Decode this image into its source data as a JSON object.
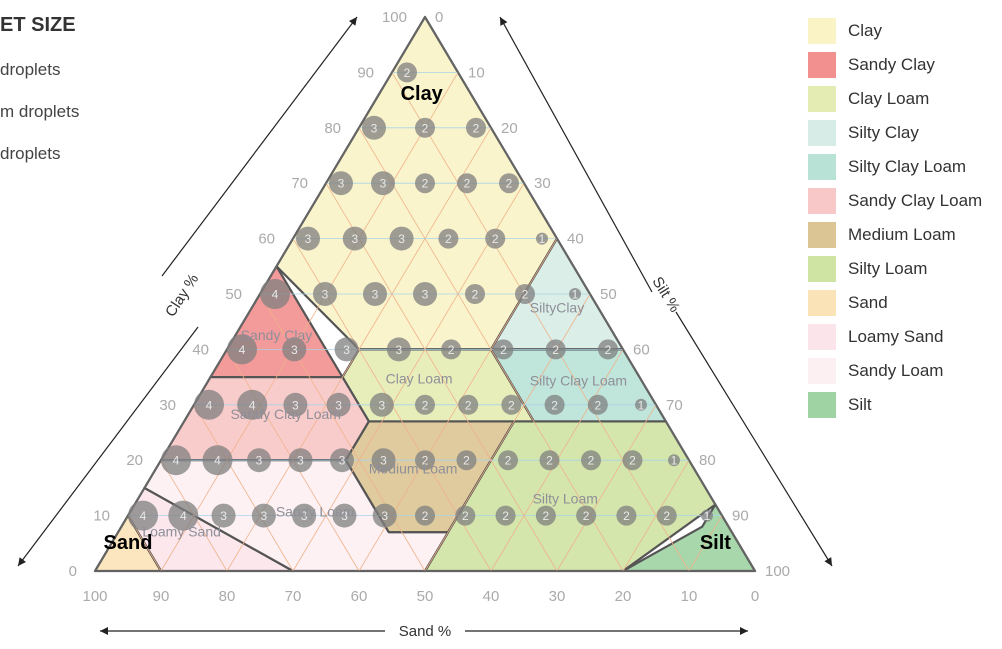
{
  "droplet_size": {
    "title": "ET SIZE",
    "items": [
      "droplets",
      "m droplets",
      "droplets"
    ]
  },
  "chart_data": {
    "type": "ternary",
    "axes": {
      "clay": {
        "label": "Clay %",
        "ticks": [
          0,
          10,
          20,
          30,
          40,
          50,
          60,
          70,
          80,
          90,
          100
        ]
      },
      "silt": {
        "label": "Silt %",
        "ticks": [
          0,
          10,
          20,
          30,
          40,
          50,
          60,
          70,
          80,
          90,
          100
        ]
      },
      "sand": {
        "label": "Sand %",
        "ticks": [
          100,
          90,
          80,
          70,
          60,
          50,
          40,
          30,
          20,
          10,
          0
        ]
      }
    },
    "corner_labels": {
      "top": "Clay",
      "left": "Sand",
      "right": "Silt"
    },
    "regions": [
      {
        "name": "Clay",
        "color": "#f9f3c6",
        "label_on_chart": "Clay",
        "vertices": [
          [
            100,
            0,
            0
          ],
          [
            55,
            0,
            45
          ],
          [
            40,
            20,
            40
          ],
          [
            40,
            40,
            20
          ],
          [
            60,
            40,
            0
          ]
        ]
      },
      {
        "name": "Sandy Clay",
        "color": "#f28f8f",
        "label_on_chart": "Sandy Clay",
        "vertices": [
          [
            55,
            0,
            45
          ],
          [
            35,
            0,
            65
          ],
          [
            35,
            20,
            45
          ]
        ]
      },
      {
        "name": "Clay Loam",
        "color": "#e5ecb3",
        "label_on_chart": "Clay Loam",
        "vertices": [
          [
            40,
            20,
            40
          ],
          [
            35,
            20,
            45
          ],
          [
            27,
            28,
            45
          ],
          [
            27,
            53,
            20
          ],
          [
            40,
            40,
            20
          ]
        ]
      },
      {
        "name": "Silty Clay",
        "color": "#d7ece6",
        "label_on_chart": "SiltyClay",
        "vertices": [
          [
            60,
            40,
            0
          ],
          [
            40,
            60,
            0
          ],
          [
            40,
            40,
            20
          ]
        ]
      },
      {
        "name": "Silty Clay Loam",
        "color": "#b9e2d6",
        "label_on_chart": "Silty Clay Loam",
        "vertices": [
          [
            40,
            40,
            20
          ],
          [
            40,
            60,
            0
          ],
          [
            27,
            73,
            0
          ],
          [
            27,
            53,
            20
          ]
        ]
      },
      {
        "name": "Sandy Clay Loam",
        "color": "#f8c7c7",
        "label_on_chart": "Sandy Clay Loam",
        "vertices": [
          [
            35,
            0,
            65
          ],
          [
            20,
            0,
            80
          ],
          [
            20,
            28,
            52
          ],
          [
            27,
            28,
            45
          ],
          [
            35,
            20,
            45
          ]
        ]
      },
      {
        "name": "Medium Loam",
        "color": "#dcc594",
        "label_on_chart": "Medium Loam",
        "vertices": [
          [
            27,
            28,
            45
          ],
          [
            20,
            28,
            52
          ],
          [
            7,
            41,
            52
          ],
          [
            7,
            50,
            43
          ],
          [
            27,
            50,
            23
          ]
        ]
      },
      {
        "name": "Silty Loam",
        "color": "#cfe3a3",
        "label_on_chart": "Silty Loam",
        "vertices": [
          [
            27,
            50,
            23
          ],
          [
            7,
            50,
            43
          ],
          [
            0,
            50,
            50
          ],
          [
            0,
            80,
            20
          ],
          [
            12,
            88,
            0
          ],
          [
            27,
            73,
            0
          ]
        ]
      },
      {
        "name": "Sand",
        "color": "#fbe3b8",
        "label_on_chart": "Sand",
        "vertices": [
          [
            0,
            0,
            100
          ],
          [
            10,
            0,
            90
          ],
          [
            0,
            10,
            90
          ]
        ]
      },
      {
        "name": "Loamy Sand",
        "color": "#fbe4ea",
        "label_on_chart": "Loamy Sand",
        "vertices": [
          [
            10,
            0,
            90
          ],
          [
            15,
            0,
            85
          ],
          [
            0,
            30,
            70
          ],
          [
            0,
            10,
            90
          ]
        ]
      },
      {
        "name": "Sandy Loam",
        "color": "#fdf0f3",
        "label_on_chart": "Sandy Loam",
        "vertices": [
          [
            15,
            0,
            85
          ],
          [
            20,
            0,
            80
          ],
          [
            20,
            28,
            52
          ],
          [
            7,
            41,
            52
          ],
          [
            7,
            50,
            43
          ],
          [
            0,
            50,
            50
          ],
          [
            0,
            30,
            70
          ]
        ]
      },
      {
        "name": "Silt",
        "color": "#9fd3a3",
        "label_on_chart": "Silt",
        "vertices": [
          [
            0,
            80,
            20
          ],
          [
            0,
            100,
            0
          ],
          [
            12,
            88,
            0
          ],
          [
            8,
            88,
            4
          ]
        ]
      }
    ],
    "droplet_grid": {
      "description_rows_by_clay": [
        {
          "clay": 90,
          "values": [
            2
          ]
        },
        {
          "clay": 80,
          "values": [
            3,
            2,
            2
          ]
        },
        {
          "clay": 70,
          "values": [
            3,
            3,
            2,
            2,
            2
          ]
        },
        {
          "clay": 60,
          "values": [
            3,
            3,
            3,
            2,
            2,
            1
          ]
        },
        {
          "clay": 50,
          "values": [
            4,
            3,
            3,
            3,
            2,
            2,
            1
          ]
        },
        {
          "clay": 40,
          "values": [
            4,
            3,
            3,
            3,
            2,
            2,
            2,
            2
          ]
        },
        {
          "clay": 30,
          "values": [
            4,
            4,
            3,
            3,
            3,
            2,
            2,
            2,
            2,
            2,
            1
          ]
        },
        {
          "clay": 20,
          "values": [
            4,
            4,
            3,
            3,
            3,
            3,
            2,
            2,
            2,
            2,
            2,
            2,
            1
          ]
        },
        {
          "clay": 10,
          "values": [
            4,
            4,
            3,
            3,
            3,
            3,
            3,
            2,
            2,
            2,
            2,
            2,
            2,
            2,
            1
          ]
        }
      ]
    }
  },
  "legend": [
    {
      "label": "Clay",
      "color": "#f9f3c6"
    },
    {
      "label": "Sandy Clay",
      "color": "#f28f8f"
    },
    {
      "label": "Clay Loam",
      "color": "#e5ecb3"
    },
    {
      "label": "Silty Clay",
      "color": "#d7ece6"
    },
    {
      "label": "Silty Clay Loam",
      "color": "#b9e2d6"
    },
    {
      "label": "Sandy Clay Loam",
      "color": "#f8c7c7"
    },
    {
      "label": "Medium Loam",
      "color": "#dcc594"
    },
    {
      "label": "Silty Loam",
      "color": "#cfe3a3"
    },
    {
      "label": "Sand",
      "color": "#fbe3b8"
    },
    {
      "label": "Loamy Sand",
      "color": "#fbe4ea"
    },
    {
      "label": "Sandy Loam",
      "color": "#fdf0f3"
    },
    {
      "label": "Silt",
      "color": "#9fd3a3"
    }
  ]
}
